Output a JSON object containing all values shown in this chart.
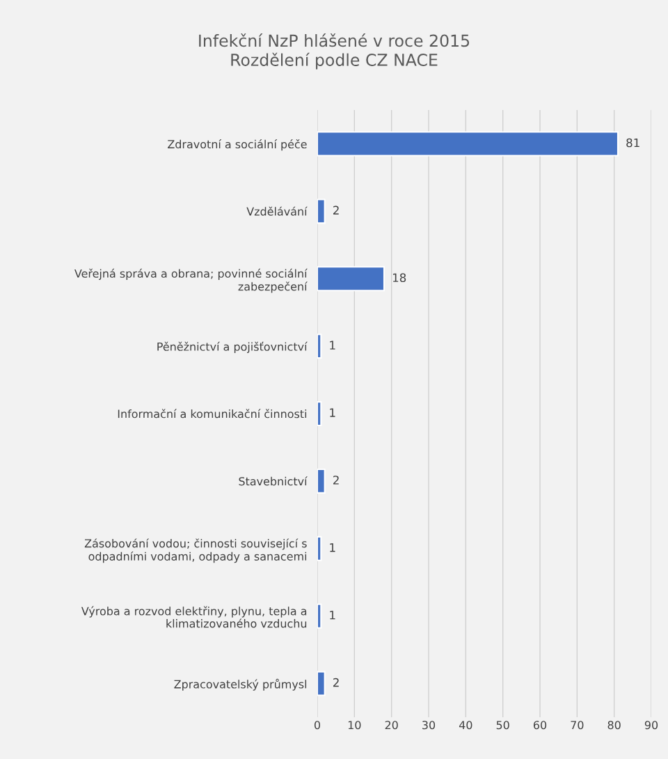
{
  "chart_data": {
    "type": "bar",
    "orientation": "horizontal",
    "title": "Infekční NzP hlášené v roce 2015\nRozdělení podle CZ NACE",
    "categories": [
      "Zdravotní a sociální péče",
      "Vzdělávání",
      "Veřejná správa a obrana; povinné sociální\nzabezpečení",
      "Pěněžnictví a pojišťovnictví",
      "Informační a komunikační činnosti",
      "Stavebnictví",
      "Zásobování vodou; činnosti související s\nodpadními vodami, odpady a sanacemi",
      "Výroba a rozvod elektřiny, plynu, tepla a\nklimatizovaného vzduchu",
      "Zpracovatelský průmysl"
    ],
    "values": [
      81,
      2,
      18,
      1,
      1,
      2,
      1,
      1,
      2
    ],
    "color": "#4472c4",
    "xlim": [
      0,
      90
    ],
    "xticks": [
      0,
      10,
      20,
      30,
      40,
      50,
      60,
      70,
      80,
      90
    ],
    "grid": "x",
    "data_labels": true
  }
}
